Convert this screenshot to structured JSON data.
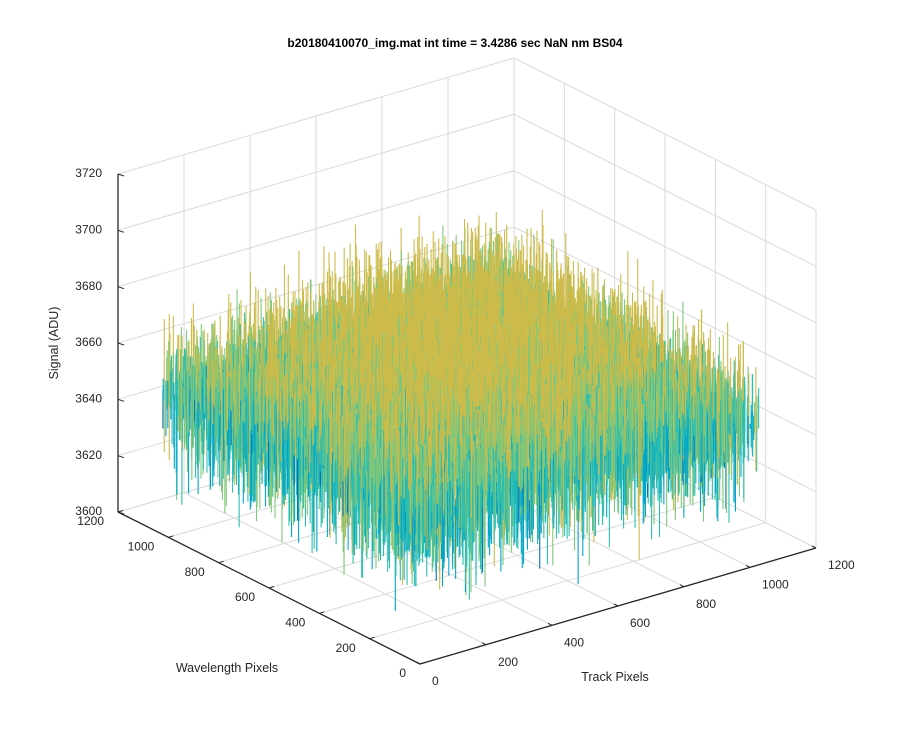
{
  "figure": {
    "background": "#ffffff",
    "grid_color": "#dadada",
    "axis_color": "#262626"
  },
  "chart_data": {
    "type": "surface",
    "title": "b20180410070_img.mat int time = 3.4286 sec  NaN nm BS04",
    "xlabel": "Track Pixels",
    "ylabel": "Wavelength Pixels",
    "zlabel": "Signal (ADU)",
    "xlim": [
      0,
      1200
    ],
    "ylim": [
      0,
      1200
    ],
    "zlim": [
      3600,
      3720
    ],
    "xticks": [
      "0",
      "200",
      "400",
      "600",
      "800",
      "1000",
      "1200"
    ],
    "yticks": [
      "0",
      "200",
      "400",
      "600",
      "800",
      "1000",
      "1200"
    ],
    "zticks": [
      "3600",
      "3620",
      "3640",
      "3660",
      "3680",
      "3700",
      "3720"
    ],
    "grid": true,
    "colormap": [
      "#0072bd",
      "#00a6ca",
      "#2bbfb0",
      "#7fc77a",
      "#cdbb4a"
    ],
    "data_extent": {
      "x": [
        0,
        1024
      ],
      "y": [
        0,
        1024
      ]
    },
    "data_summary": {
      "description_values": "noisy surface; mean signal approx 3650 ADU at edges rising to approx 3665 ADU at center; fluctuation approx ±15 ADU",
      "edge_mean": 3650,
      "center_mean": 3665,
      "noise_amplitude": 15
    }
  }
}
